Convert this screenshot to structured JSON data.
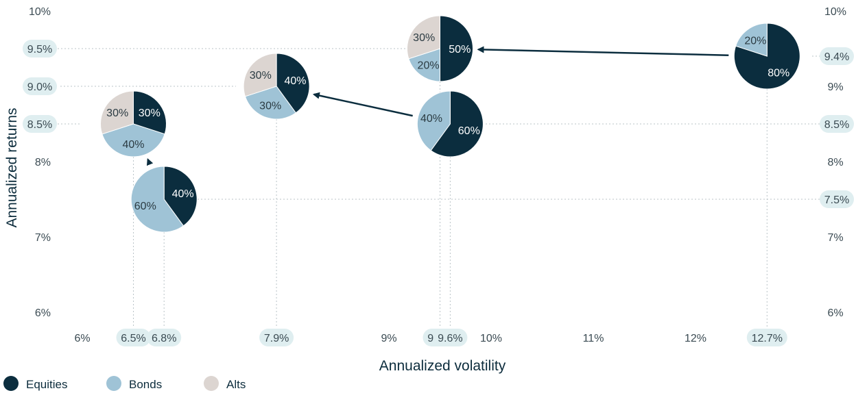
{
  "colors": {
    "equities": "#0b2d3e",
    "bonds": "#9fc3d6",
    "alts": "#dcd5d1",
    "pill": "#dfeef0",
    "guide": "#b9c3c7",
    "arrow": "#0b2d3e"
  },
  "chart_data": {
    "type": "scatter",
    "title": "",
    "xlabel": "Annualized volatility",
    "ylabel": "Annualized returns",
    "xlim": [
      6,
      13
    ],
    "ylim": [
      6,
      10
    ],
    "x_ticks": [
      "6%",
      "9%",
      "10%",
      "11%",
      "12%"
    ],
    "y_ticks": [
      "6%",
      "7%",
      "8%",
      "10%"
    ],
    "y_ticks_right": [
      "6%",
      "7%",
      "8%",
      "9%",
      "10%"
    ],
    "highlighted_x": [
      "6.5%",
      "6.8%",
      "7.9%",
      "9.5%",
      "9.6%",
      "12.7%"
    ],
    "highlighted_y_left": [
      "8.5%",
      "9.0%",
      "9.5%"
    ],
    "highlighted_y_right": [
      "7.5%",
      "8.5%",
      "9.4%"
    ],
    "legend": [
      "Equities",
      "Bonds",
      "Alts"
    ],
    "legend_position": "bottom-left",
    "portfolios": [
      {
        "x": 6.8,
        "y": 7.5,
        "slices": [
          {
            "asset": "Equities",
            "pct": 40,
            "label": "40%"
          },
          {
            "asset": "Bonds",
            "pct": 60,
            "label": "60%"
          }
        ]
      },
      {
        "x": 6.5,
        "y": 8.5,
        "slices": [
          {
            "asset": "Equities",
            "pct": 30,
            "label": "30%"
          },
          {
            "asset": "Bonds",
            "pct": 40,
            "label": "40%"
          },
          {
            "asset": "Alts",
            "pct": 30,
            "label": "30%"
          }
        ]
      },
      {
        "x": 9.6,
        "y": 8.5,
        "slices": [
          {
            "asset": "Equities",
            "pct": 60,
            "label": "60%"
          },
          {
            "asset": "Bonds",
            "pct": 40,
            "label": "40%"
          }
        ]
      },
      {
        "x": 7.9,
        "y": 9.0,
        "slices": [
          {
            "asset": "Equities",
            "pct": 40,
            "label": "40%"
          },
          {
            "asset": "Bonds",
            "pct": 30,
            "label": "30%"
          },
          {
            "asset": "Alts",
            "pct": 30,
            "label": "30%"
          }
        ]
      },
      {
        "x": 12.7,
        "y": 9.4,
        "slices": [
          {
            "asset": "Equities",
            "pct": 80,
            "label": "80%"
          },
          {
            "asset": "Bonds",
            "pct": 20,
            "label": "20%"
          }
        ]
      },
      {
        "x": 9.5,
        "y": 9.5,
        "slices": [
          {
            "asset": "Equities",
            "pct": 50,
            "label": "50%"
          },
          {
            "asset": "Bonds",
            "pct": 20,
            "label": "20%"
          },
          {
            "asset": "Alts",
            "pct": 30,
            "label": "30%"
          }
        ]
      }
    ],
    "arrows": [
      {
        "from": [
          6.8,
          7.5
        ],
        "to": [
          6.5,
          8.5
        ]
      },
      {
        "from": [
          9.6,
          8.5
        ],
        "to": [
          7.9,
          9.0
        ]
      },
      {
        "from": [
          12.7,
          9.4
        ],
        "to": [
          9.5,
          9.5
        ]
      }
    ]
  }
}
